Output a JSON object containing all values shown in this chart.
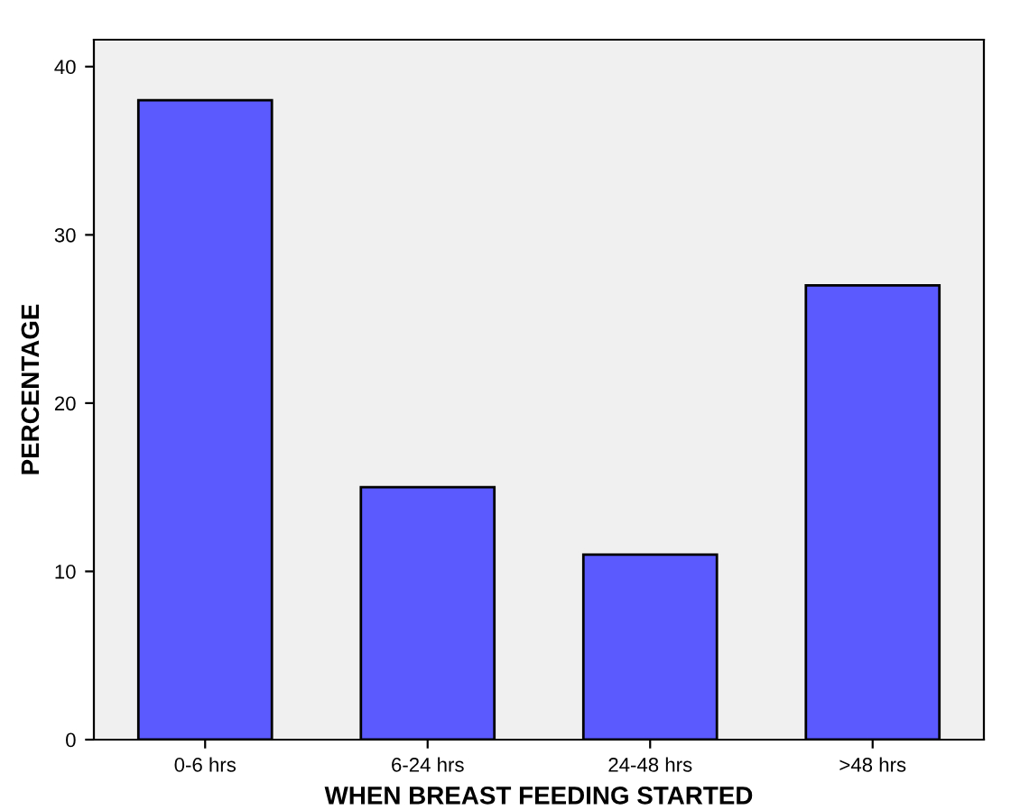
{
  "chart_data": {
    "type": "bar",
    "xlabel": "WHEN BREAST FEEDING STARTED",
    "ylabel": "PERCENTAGE",
    "categories": [
      "0-6 hrs",
      "6-24 hrs",
      "24-48 hrs",
      ">48 hrs"
    ],
    "values": [
      38,
      15,
      11,
      27
    ],
    "color": "#5a5aff",
    "ylim": [
      0,
      41.6
    ],
    "yticks": [
      0,
      10,
      20,
      30,
      40
    ],
    "grid": false,
    "legend": false
  }
}
